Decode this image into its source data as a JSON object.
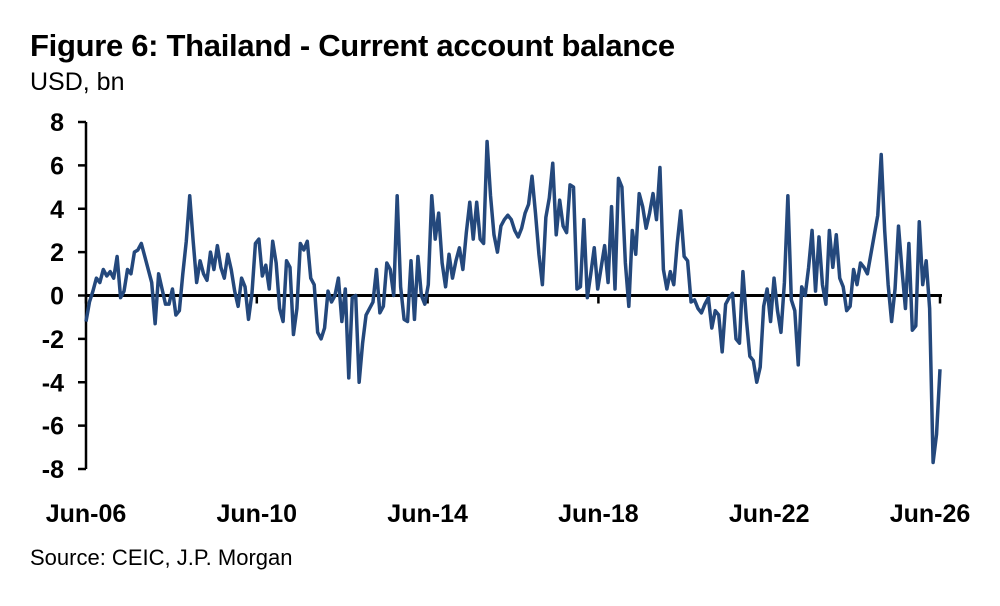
{
  "figure": {
    "title": "Figure 6: Thailand - Current account balance",
    "unit": "USD, bn",
    "source": "Source: CEIC, J.P. Morgan"
  },
  "colors": {
    "line": "#24487c",
    "axis": "#000000"
  },
  "chart_data": {
    "type": "line",
    "title": "Figure 6: Thailand - Current account balance",
    "ylabel": "USD, bn",
    "xlabel": "",
    "ylim": [
      -8,
      8
    ],
    "yticks": [
      8,
      6,
      4,
      2,
      0,
      -2,
      -4,
      -6,
      -8
    ],
    "xticks": [
      "Jun-06",
      "Jun-10",
      "Jun-14",
      "Jun-18",
      "Jun-22",
      "Jun-26"
    ],
    "x_start": "Jun-06",
    "frequency": "monthly",
    "grid": false,
    "legend": "none",
    "series": [
      {
        "values": [
          -1.2,
          -0.3,
          0.2,
          0.8,
          0.6,
          1.2,
          0.9,
          1.1,
          0.8,
          1.8,
          -0.1,
          0.2,
          1.2,
          1.0,
          2.0,
          2.1,
          2.4,
          1.8,
          1.2,
          0.6,
          -1.3,
          1.0,
          0.3,
          -0.4,
          -0.4,
          0.3,
          -0.9,
          -0.7,
          1.0,
          2.5,
          4.6,
          2.5,
          0.6,
          1.6,
          1.0,
          0.7,
          2.0,
          1.2,
          2.3,
          1.3,
          0.8,
          1.9,
          1.2,
          0.2,
          -0.5,
          0.8,
          0.4,
          -1.1,
          0.1,
          2.4,
          2.6,
          0.9,
          1.4,
          0.3,
          2.5,
          1.5,
          -0.6,
          -1.2,
          1.6,
          1.3,
          -1.8,
          -0.6,
          2.4,
          2.1,
          2.5,
          0.8,
          0.5,
          -1.7,
          -2.0,
          -1.5,
          0.2,
          -0.3,
          0.0,
          0.8,
          -1.2,
          0.3,
          -3.8,
          -0.1,
          0.0,
          -4.0,
          -2.2,
          -0.9,
          -0.6,
          -0.3,
          1.2,
          -0.8,
          -0.5,
          1.5,
          1.2,
          0.0,
          4.6,
          0.4,
          -1.1,
          -1.2,
          1.6,
          -1.1,
          1.8,
          0.0,
          -0.4,
          0.5,
          4.6,
          2.6,
          3.8,
          1.5,
          0.4,
          1.9,
          0.8,
          1.6,
          2.2,
          1.2,
          2.9,
          4.3,
          2.6,
          4.3,
          2.6,
          2.4,
          7.1,
          4.6,
          2.8,
          2.0,
          3.2,
          3.5,
          3.7,
          3.5,
          3.0,
          2.7,
          3.1,
          3.8,
          4.2,
          5.5,
          3.8,
          1.9,
          0.5,
          3.6,
          4.5,
          6.1,
          2.8,
          4.4,
          3.2,
          2.9,
          5.1,
          5.0,
          0.3,
          0.4,
          3.5,
          -0.1,
          1.0,
          2.2,
          0.3,
          1.3,
          2.3,
          0.6,
          4.1,
          0.3,
          5.4,
          5.0,
          1.5,
          -0.5,
          3.0,
          1.9,
          4.7,
          4.1,
          3.1,
          3.8,
          4.7,
          3.5,
          5.9,
          1.2,
          0.3,
          1.1,
          0.5,
          2.4,
          3.9,
          1.8,
          1.6,
          -0.3,
          -0.2,
          -0.6,
          -0.8,
          -0.4,
          -0.1,
          -1.5,
          -0.7,
          -0.9,
          -2.6,
          -0.4,
          -0.1,
          0.1,
          -2.0,
          -2.2,
          1.1,
          -1.1,
          -2.8,
          -3.0,
          -4.0,
          -3.3,
          -0.5,
          0.3,
          -1.2,
          0.8,
          -0.7,
          -1.7,
          0.6,
          4.6,
          -0.2,
          -0.7,
          -3.2,
          0.4,
          0.0,
          1.3,
          3.0,
          0.2,
          2.7,
          0.5,
          -0.4,
          3.0,
          1.3,
          2.8,
          0.8,
          0.4,
          -0.7,
          -0.5,
          1.2,
          0.5,
          1.5,
          1.3,
          1.0,
          1.9,
          2.8,
          3.7,
          6.5,
          3.0,
          0.5,
          -1.2,
          0.3,
          3.2,
          1.2,
          -0.6,
          2.4,
          -1.6,
          -1.4,
          3.4,
          0.5,
          1.6,
          -0.6,
          -7.7,
          -6.4,
          -3.4
        ]
      }
    ]
  }
}
